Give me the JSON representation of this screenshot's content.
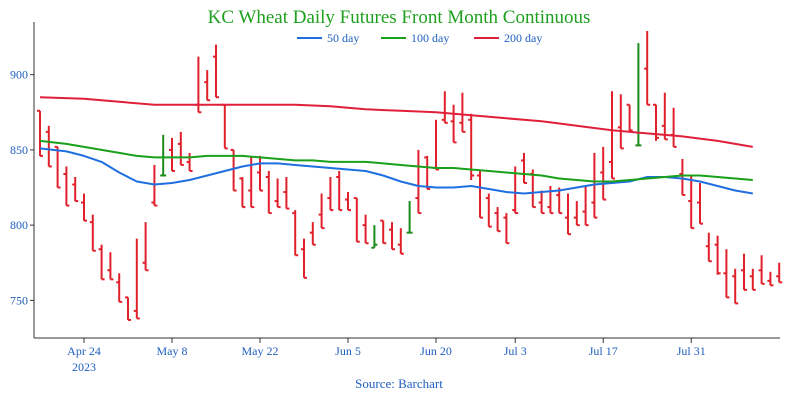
{
  "chart_data": {
    "type": "ohlc",
    "title": "KC Wheat Daily Futures Front Month Continuous",
    "source": "Source: Barchart",
    "ylim": [
      725,
      935
    ],
    "yticks": [
      750,
      800,
      850,
      900
    ],
    "grid": false,
    "legend_placement": "top-center",
    "colors": {
      "title": "#1fa01f",
      "axis_text": "#1f5fbf",
      "up": "#1a8a1a",
      "down": "#e0202a",
      "ma50": "#1f6fe0",
      "ma100": "#1aa01a",
      "ma200": "#e0203a",
      "axis": "#333333"
    },
    "xaxis": {
      "ticks": [
        {
          "label": "Apr 24",
          "sublabel": "2023",
          "day": 5
        },
        {
          "label": "May 8",
          "day": 15
        },
        {
          "label": "May 22",
          "day": 25
        },
        {
          "label": "Jun 5",
          "day": 35
        },
        {
          "label": "Jun 20",
          "day": 45
        },
        {
          "label": "Jul 3",
          "day": 54
        },
        {
          "label": "Jul 17",
          "day": 64
        },
        {
          "label": "Jul 31",
          "day": 74
        }
      ]
    },
    "series": [
      {
        "name": "50 day",
        "color": "#1f6fe0",
        "points": [
          [
            0,
            851
          ],
          [
            3,
            849
          ],
          [
            5,
            846
          ],
          [
            7,
            842
          ],
          [
            9,
            835
          ],
          [
            11,
            829
          ],
          [
            13,
            827
          ],
          [
            15,
            828
          ],
          [
            17,
            830
          ],
          [
            19,
            833
          ],
          [
            21,
            836
          ],
          [
            23,
            839
          ],
          [
            25,
            841
          ],
          [
            27,
            841
          ],
          [
            29,
            840
          ],
          [
            31,
            839
          ],
          [
            33,
            838
          ],
          [
            35,
            837
          ],
          [
            37,
            836
          ],
          [
            39,
            833
          ],
          [
            41,
            829
          ],
          [
            43,
            826
          ],
          [
            45,
            825
          ],
          [
            47,
            825
          ],
          [
            49,
            826
          ],
          [
            51,
            824
          ],
          [
            53,
            822
          ],
          [
            55,
            821
          ],
          [
            57,
            822
          ],
          [
            59,
            823
          ],
          [
            61,
            825
          ],
          [
            63,
            827
          ],
          [
            65,
            828
          ],
          [
            67,
            829
          ],
          [
            69,
            832
          ],
          [
            71,
            832
          ],
          [
            73,
            831
          ],
          [
            75,
            829
          ],
          [
            77,
            826
          ],
          [
            79,
            823
          ],
          [
            81,
            821
          ]
        ]
      },
      {
        "name": "100 day",
        "color": "#1aa01a",
        "points": [
          [
            0,
            856
          ],
          [
            3,
            854
          ],
          [
            5,
            852
          ],
          [
            7,
            850
          ],
          [
            9,
            848
          ],
          [
            11,
            846
          ],
          [
            13,
            845
          ],
          [
            15,
            845
          ],
          [
            17,
            845
          ],
          [
            19,
            846
          ],
          [
            21,
            846
          ],
          [
            23,
            846
          ],
          [
            25,
            845
          ],
          [
            27,
            844
          ],
          [
            29,
            843
          ],
          [
            31,
            843
          ],
          [
            33,
            842
          ],
          [
            35,
            842
          ],
          [
            37,
            842
          ],
          [
            39,
            841
          ],
          [
            41,
            840
          ],
          [
            43,
            839
          ],
          [
            45,
            838
          ],
          [
            47,
            838
          ],
          [
            49,
            837
          ],
          [
            51,
            836
          ],
          [
            53,
            835
          ],
          [
            55,
            834
          ],
          [
            57,
            833
          ],
          [
            59,
            831
          ],
          [
            61,
            830
          ],
          [
            63,
            829
          ],
          [
            65,
            829
          ],
          [
            67,
            830
          ],
          [
            69,
            831
          ],
          [
            71,
            832
          ],
          [
            73,
            833
          ],
          [
            75,
            833
          ],
          [
            77,
            832
          ],
          [
            79,
            831
          ],
          [
            81,
            830
          ]
        ]
      },
      {
        "name": "200 day",
        "color": "#e0203a",
        "points": [
          [
            0,
            885
          ],
          [
            5,
            884
          ],
          [
            9,
            882
          ],
          [
            13,
            880
          ],
          [
            17,
            880
          ],
          [
            21,
            880
          ],
          [
            25,
            880
          ],
          [
            29,
            880
          ],
          [
            33,
            879
          ],
          [
            37,
            877
          ],
          [
            41,
            876
          ],
          [
            45,
            875
          ],
          [
            49,
            873
          ],
          [
            53,
            871
          ],
          [
            57,
            869
          ],
          [
            61,
            866
          ],
          [
            65,
            863
          ],
          [
            69,
            861
          ],
          [
            73,
            859
          ],
          [
            77,
            856
          ],
          [
            81,
            852
          ]
        ]
      }
    ],
    "ohlc": [
      [
        0,
        876,
        868,
        860,
        846
      ],
      [
        1,
        862,
        866,
        844,
        839
      ],
      [
        2,
        852,
        850,
        827,
        825
      ],
      [
        3,
        834,
        839,
        826,
        813
      ],
      [
        4,
        827,
        832,
        820,
        816
      ],
      [
        5,
        815,
        821,
        806,
        803
      ],
      [
        6,
        802,
        807,
        795,
        783
      ],
      [
        7,
        784,
        787,
        765,
        764
      ],
      [
        8,
        770,
        782,
        775,
        764
      ],
      [
        9,
        762,
        768,
        758,
        749
      ],
      [
        10,
        752,
        752,
        738,
        737
      ],
      [
        11,
        743,
        791,
        754,
        738
      ],
      [
        12,
        775,
        802,
        795,
        770
      ],
      [
        13,
        815,
        840,
        833,
        813
      ],
      [
        14,
        833,
        860,
        850,
        833
      ],
      [
        15,
        850,
        858,
        847,
        836
      ],
      [
        16,
        854,
        862,
        858,
        840
      ],
      [
        17,
        842,
        848,
        840,
        836
      ],
      [
        18,
        880,
        912,
        890,
        875
      ],
      [
        19,
        895,
        903,
        897,
        883
      ],
      [
        20,
        912,
        920,
        892,
        885
      ],
      [
        21,
        880,
        879,
        861,
        851
      ],
      [
        22,
        850,
        850,
        832,
        823
      ],
      [
        23,
        831,
        832,
        824,
        812
      ],
      [
        24,
        823,
        846,
        844,
        812
      ],
      [
        25,
        835,
        846,
        832,
        823
      ],
      [
        26,
        832,
        836,
        822,
        808
      ],
      [
        27,
        816,
        831,
        822,
        812
      ],
      [
        28,
        822,
        832,
        830,
        811
      ],
      [
        29,
        808,
        810,
        784,
        780
      ],
      [
        30,
        784,
        791,
        790,
        765
      ],
      [
        31,
        795,
        800,
        802,
        787
      ],
      [
        32,
        807,
        821,
        815,
        798
      ],
      [
        33,
        818,
        832,
        828,
        810
      ],
      [
        34,
        832,
        836,
        815,
        810
      ],
      [
        35,
        817,
        822,
        816,
        810
      ],
      [
        36,
        818,
        816,
        800,
        789
      ],
      [
        37,
        800,
        807,
        790,
        788
      ],
      [
        38,
        785,
        800,
        797,
        787
      ],
      [
        39,
        803,
        799,
        795,
        788
      ],
      [
        40,
        797,
        802,
        790,
        784
      ],
      [
        41,
        787,
        798,
        795,
        781
      ],
      [
        42,
        795,
        816,
        813,
        795
      ],
      [
        43,
        818,
        850,
        848,
        808
      ],
      [
        44,
        845,
        846,
        834,
        824
      ],
      [
        45,
        838,
        870,
        870,
        837
      ],
      [
        46,
        870,
        889,
        873,
        868
      ],
      [
        47,
        869,
        880,
        860,
        855
      ],
      [
        48,
        868,
        888,
        880,
        862
      ],
      [
        49,
        870,
        874,
        830,
        833
      ],
      [
        50,
        833,
        837,
        812,
        805
      ],
      [
        51,
        818,
        821,
        808,
        799
      ],
      [
        52,
        808,
        812,
        805,
        796
      ],
      [
        53,
        805,
        808,
        794,
        788
      ],
      [
        54,
        810,
        839,
        836,
        808
      ],
      [
        55,
        843,
        848,
        843,
        828
      ],
      [
        56,
        834,
        837,
        826,
        812
      ],
      [
        57,
        815,
        823,
        811,
        808
      ],
      [
        58,
        812,
        826,
        818,
        808
      ],
      [
        59,
        820,
        825,
        817,
        808
      ],
      [
        60,
        805,
        821,
        813,
        794
      ],
      [
        61,
        805,
        816,
        810,
        800
      ],
      [
        62,
        809,
        826,
        815,
        800
      ],
      [
        63,
        815,
        848,
        839,
        805
      ],
      [
        64,
        835,
        852,
        845,
        817
      ],
      [
        65,
        842,
        889,
        866,
        831
      ],
      [
        66,
        865,
        887,
        878,
        851
      ],
      [
        67,
        880,
        862,
        864,
        863
      ],
      [
        68,
        853,
        921,
        917,
        853
      ],
      [
        69,
        904,
        929,
        901,
        880
      ],
      [
        70,
        880,
        870,
        856,
        858
      ],
      [
        71,
        866,
        888,
        866,
        857
      ],
      [
        72,
        860,
        878,
        858,
        852
      ],
      [
        73,
        834,
        844,
        830,
        820
      ],
      [
        74,
        816,
        833,
        804,
        798
      ],
      [
        75,
        815,
        828,
        802,
        801
      ],
      [
        76,
        786,
        795,
        782,
        776
      ],
      [
        77,
        787,
        793,
        767,
        768
      ],
      [
        78,
        768,
        784,
        760,
        752
      ],
      [
        79,
        766,
        771,
        767,
        748
      ],
      [
        80,
        770,
        781,
        768,
        757
      ],
      [
        81,
        766,
        771,
        770,
        757
      ],
      [
        82,
        770,
        780,
        771,
        761
      ],
      [
        83,
        763,
        769,
        768,
        760
      ],
      [
        84,
        766,
        775,
        767,
        762
      ]
    ]
  }
}
